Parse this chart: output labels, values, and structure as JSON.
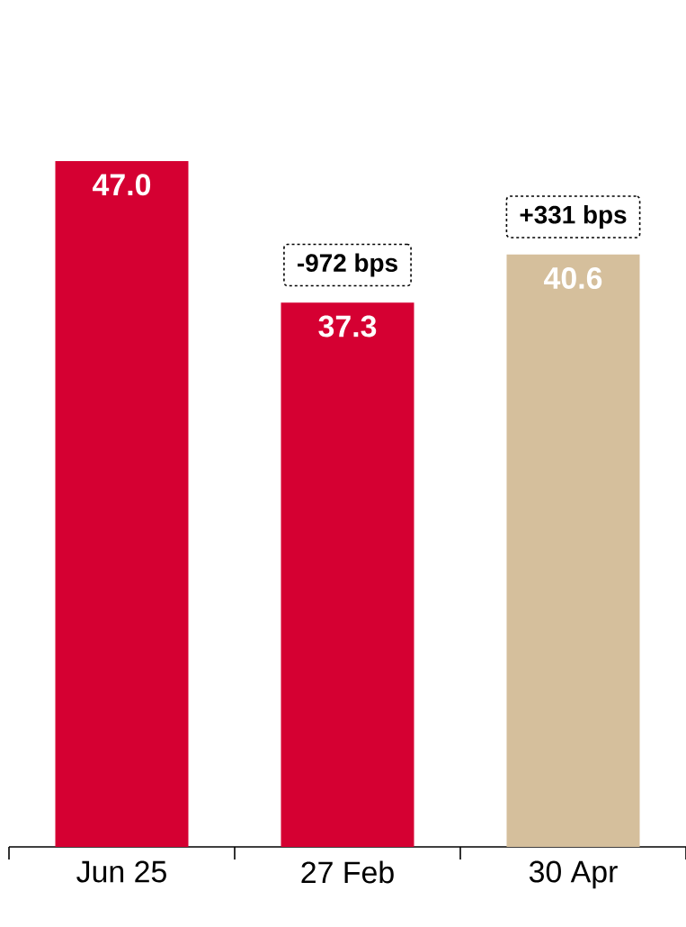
{
  "chart_data": {
    "type": "bar",
    "categories": [
      "Jun 25",
      "27 Feb",
      "30 Apr"
    ],
    "values": [
      47.0,
      37.3,
      40.6
    ],
    "value_labels": [
      "47.0",
      "37.3",
      "40.6"
    ],
    "colors": [
      "#d50032",
      "#d50032",
      "#d5bf9c"
    ],
    "grid": false,
    "tick_labels": "x",
    "annotations": [
      "-972 bps",
      "+331 bps"
    ]
  }
}
